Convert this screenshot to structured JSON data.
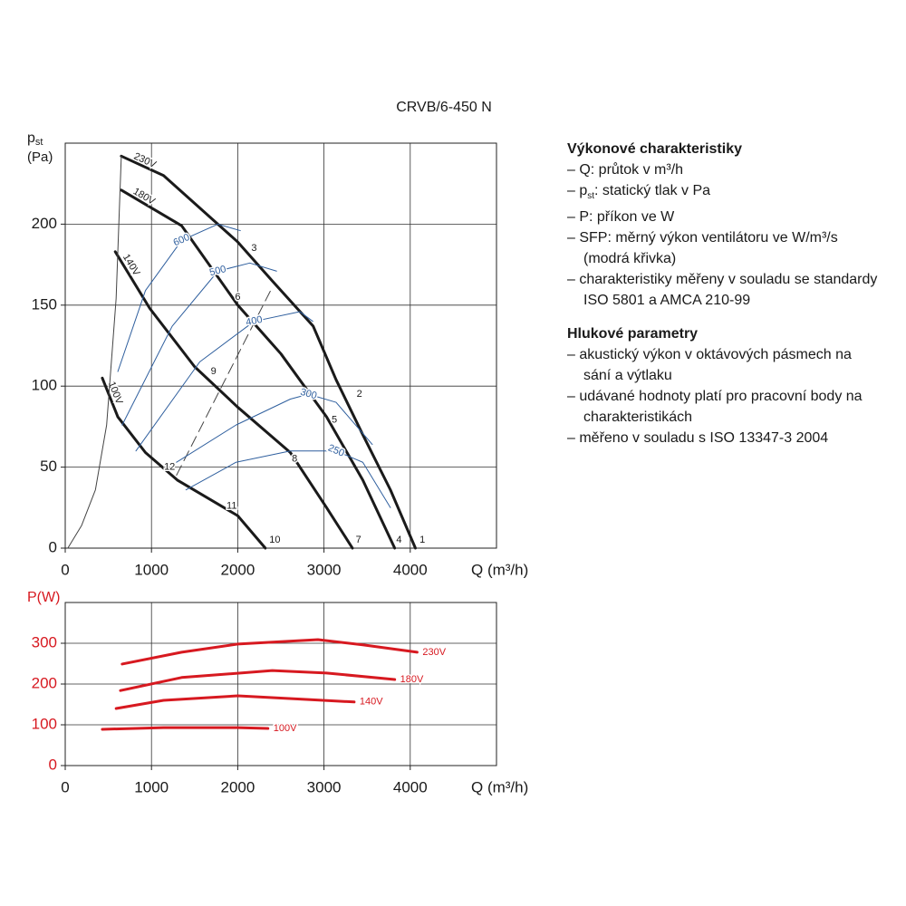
{
  "title": "CRVB/6-450 N",
  "chart_data": [
    {
      "type": "line",
      "y_label": "p",
      "y_label_sub": "st",
      "y_unit": "(Pa)",
      "x_label": "Q (m³/h)",
      "xlim": [
        0,
        5000
      ],
      "xticks": [
        0,
        1000,
        2000,
        3000,
        4000
      ],
      "ylim": [
        0,
        250
      ],
      "yticks": [
        0,
        50,
        100,
        150,
        200
      ],
      "grid": true,
      "axis_color": "#1a1a1a",
      "series": [
        {
          "name": "230V",
          "color": "#1a1a1a",
          "style": "thick",
          "label_position": "start",
          "x": [
            650,
            1140,
            2000,
            2400,
            2875,
            3140,
            3450,
            3770,
            4060
          ],
          "values": [
            242,
            230,
            189,
            165,
            137,
            104,
            70,
            36,
            0
          ]
        },
        {
          "name": "180V",
          "color": "#1a1a1a",
          "style": "thick",
          "label_position": "start",
          "x": [
            650,
            1350,
            2000,
            2500,
            3030,
            3450,
            3820
          ],
          "values": [
            221,
            199,
            150,
            120,
            81,
            42,
            0
          ]
        },
        {
          "name": "140V",
          "color": "#1a1a1a",
          "style": "thick",
          "label_position": "start",
          "x": [
            580,
            980,
            1500,
            2000,
            2610,
            3030,
            3330
          ],
          "values": [
            183,
            148,
            112,
            87,
            59,
            25,
            0
          ]
        },
        {
          "name": "100V",
          "color": "#1a1a1a",
          "style": "thick",
          "label_position": "start",
          "x": [
            430,
            610,
            930,
            1300,
            2000,
            2320
          ],
          "values": [
            105,
            81,
            59,
            42,
            20,
            0
          ]
        },
        {
          "color": "#444444",
          "style": "thin",
          "x": [
            30,
            190,
            350,
            480,
            590,
            650
          ],
          "values": [
            0,
            14,
            36,
            76,
            154,
            242
          ]
        },
        {
          "color": "#444444",
          "style": "dashed",
          "x": [
            1290,
            2400
          ],
          "values": [
            45,
            161
          ]
        },
        {
          "name": "600",
          "color": "#2f5f9e",
          "style": "thin",
          "label_position": "middle",
          "x": [
            610,
            930,
            1350,
            1770,
            2030
          ],
          "values": [
            109,
            159,
            190,
            200,
            196
          ]
        },
        {
          "name": "500",
          "color": "#2f5f9e",
          "style": "thin",
          "label_position": "middle",
          "x": [
            660,
            1240,
            1770,
            2140,
            2450
          ],
          "values": [
            76,
            137,
            171,
            176,
            171
          ]
        },
        {
          "name": "400",
          "color": "#2f5f9e",
          "style": "thin",
          "label_position": "middle",
          "x": [
            820,
            1560,
            2190,
            2720,
            2870
          ],
          "values": [
            60,
            115,
            140,
            146,
            140
          ]
        },
        {
          "name": "300",
          "color": "#2f5f9e",
          "style": "thin",
          "label_position": "middle",
          "x": [
            1290,
            1980,
            2610,
            2820,
            3140,
            3560
          ],
          "values": [
            53,
            76,
            92,
            95,
            90,
            64
          ]
        },
        {
          "name": "250",
          "color": "#2f5f9e",
          "style": "thin",
          "label_position": "middle",
          "x": [
            1400,
            1980,
            2610,
            3140,
            3450,
            3770
          ],
          "values": [
            36,
            53,
            60,
            60,
            53,
            25
          ]
        }
      ],
      "annotations": [
        {
          "text": "1",
          "x": 4140,
          "y": 5
        },
        {
          "text": "2",
          "x": 3410,
          "y": 95
        },
        {
          "text": "3",
          "x": 2190,
          "y": 185
        },
        {
          "text": "4",
          "x": 3870,
          "y": 5
        },
        {
          "text": "5",
          "x": 3120,
          "y": 79
        },
        {
          "text": "6",
          "x": 2000,
          "y": 155
        },
        {
          "text": "7",
          "x": 3400,
          "y": 5
        },
        {
          "text": "8",
          "x": 2660,
          "y": 55
        },
        {
          "text": "9",
          "x": 1720,
          "y": 109
        },
        {
          "text": "10",
          "x": 2430,
          "y": 5
        },
        {
          "text": "11",
          "x": 1930,
          "y": 26
        },
        {
          "text": "12",
          "x": 1210,
          "y": 50
        }
      ]
    },
    {
      "type": "line",
      "y_label": "P(W)",
      "x_label": "Q (m³/h)",
      "xlim": [
        0,
        5000
      ],
      "xticks": [
        0,
        1000,
        2000,
        3000,
        4000
      ],
      "ylim": [
        0,
        400
      ],
      "yticks": [
        0,
        100,
        200,
        300
      ],
      "grid": true,
      "axis_color": "#d71920",
      "series": [
        {
          "name": "230V",
          "color": "#d71920",
          "style": "thick",
          "label_position": "end",
          "x": [
            660,
            1350,
            2000,
            2930,
            3450,
            4080
          ],
          "values": [
            249,
            278,
            298,
            309,
            296,
            278
          ]
        },
        {
          "name": "180V",
          "color": "#d71920",
          "style": "thick",
          "label_position": "end",
          "x": [
            640,
            1350,
            2400,
            3030,
            3820
          ],
          "values": [
            184,
            216,
            233,
            227,
            211
          ]
        },
        {
          "name": "140V",
          "color": "#d71920",
          "style": "thick",
          "label_position": "end",
          "x": [
            590,
            1140,
            2000,
            2820,
            3350
          ],
          "values": [
            140,
            160,
            171,
            162,
            156
          ]
        },
        {
          "name": "100V",
          "color": "#d71920",
          "style": "thick",
          "label_position": "end",
          "x": [
            430,
            1140,
            2000,
            2350
          ],
          "values": [
            89,
            93,
            93,
            91
          ]
        }
      ]
    }
  ],
  "notes": {
    "sections": [
      {
        "heading": "Výkonové charakteristiky",
        "items": [
          {
            "text": "Q: průtok v m³/h"
          },
          {
            "main": "p",
            "sub": "st",
            "text": ": statický tlak v Pa"
          },
          {
            "text": "P: příkon ve W"
          },
          {
            "text": "SFP: měrný výkon ventilátoru ve W/m³/s (modrá křivka)"
          },
          {
            "text": "charakteristiky měřeny v souladu se standardy ISO 5801 a AMCA 210-99"
          }
        ]
      },
      {
        "heading": "Hlukové parametry",
        "items": [
          {
            "text": "akustický výkon v oktávových pásmech na sání a výtlaku"
          },
          {
            "text": "udávané hodnoty platí pro pracovní body na charakteristikách"
          },
          {
            "text": "měřeno v souladu s ISO 13347-3 2004"
          }
        ]
      }
    ]
  }
}
